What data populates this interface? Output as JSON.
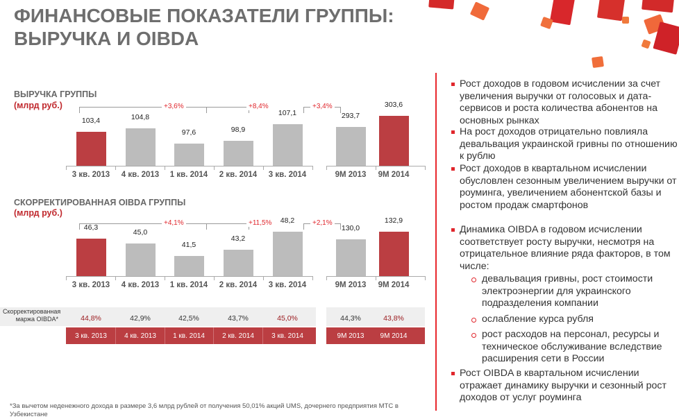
{
  "title": [
    "ФИНАНСОВЫЕ ПОКАЗАТЕЛИ ГРУППЫ:",
    "ВЫРУЧКА И OIBDA"
  ],
  "revenue": {
    "title": "ВЫРУЧКА ГРУППЫ",
    "unit": "(млрд руб.)",
    "growth_yoy": "+3,6%",
    "growth_qoq": "+8,4%",
    "growth_9m": "+3,4%"
  },
  "oibda": {
    "title": "СКОРРЕКТИРОВАННАЯ OIBDA ГРУППЫ",
    "unit": "(млрд руб.)",
    "growth_yoy": "+4,1%",
    "growth_qoq": "+11,5%",
    "growth_9m": "+2,1%"
  },
  "chart_data": [
    {
      "type": "bar",
      "title": "ВЫРУЧКА ГРУППЫ",
      "ylabel": "млрд руб.",
      "categories": [
        "3 кв. 2013",
        "4 кв. 2013",
        "1 кв. 2014",
        "2 кв. 2014",
        "3 кв. 2014"
      ],
      "values": [
        103.4,
        104.8,
        97.6,
        98.9,
        107.1
      ],
      "labels": [
        "103,4",
        "104,8",
        "97,6",
        "98,9",
        "107,1"
      ],
      "highlight": [
        0
      ],
      "ylim": [
        87,
        120
      ]
    },
    {
      "type": "bar",
      "title": "ВЫРУЧКА ГРУППЫ 9M",
      "categories": [
        "9M 2013",
        "9M 2014"
      ],
      "values": [
        293.7,
        303.6
      ],
      "labels": [
        "293,7",
        "303,6"
      ],
      "highlight": [
        1
      ],
      "ylim": [
        260,
        320
      ]
    },
    {
      "type": "bar",
      "title": "СКОРРЕКТИРОВАННАЯ OIBDA ГРУППЫ",
      "categories": [
        "3 кв. 2013",
        "4 кв. 2013",
        "1 кв. 2014",
        "2 кв. 2014",
        "3 кв. 2014"
      ],
      "values": [
        46.3,
        45.0,
        41.5,
        43.2,
        48.2
      ],
      "labels": [
        "46,3",
        "45,0",
        "41,5",
        "43,2",
        "48,2"
      ],
      "highlight": [
        0
      ],
      "ylim": [
        36,
        55
      ]
    },
    {
      "type": "bar",
      "title": "СКОРРЕКТИРОВАННАЯ OIBDA ГРУППЫ 9M",
      "categories": [
        "9M 2013",
        "9M 2014"
      ],
      "values": [
        130.0,
        132.9
      ],
      "labels": [
        "130,0",
        "132,9"
      ],
      "highlight": [
        1
      ],
      "ylim": [
        116,
        142
      ]
    }
  ],
  "margin": {
    "label": "Скорректированная маржа OIBDA*",
    "values": [
      "44,8%",
      "42,9%",
      "42,5%",
      "43,7%",
      "45,0%"
    ],
    "values_9m": [
      "44,3%",
      "43,8%"
    ],
    "periods": [
      "3 кв. 2013",
      "4 кв. 2013",
      "1 кв. 2014",
      "2 кв. 2014",
      "3 кв. 2014"
    ],
    "periods_9m": [
      "9M 2013",
      "9M 2014"
    ],
    "highlight_color": "#9b1c20"
  },
  "bullets": [
    "Рост доходов в годовом исчислении за счет увеличения выручки от голосовых и дата-сервисов и роста количества абонентов на основных рынках",
    "На рост доходов отрицательно повлияла девальвация украинской гривны по отношению к рублю",
    "Рост доходов в квартальном исчислении обусловлен сезонным увеличением выручки от роуминга, увеличением абонентской базы и ростом продаж смартфонов",
    "Динамика OIBDA в годовом исчислении соответствует росту выручки, несмотря на отрицательное влияние ряда факторов, в том числе:",
    "Рост OIBDA в квартальном исчислении отражает динамику выручки и сезонный рост доходов от услуг роуминга"
  ],
  "sub_bullets": [
    "девальвация гривны, рост стоимости электроэнергии для украинского подразделения компании",
    "ослабление курса рубля",
    "рост расходов на персонал, ресурсы и техническое обслуживание вследствие расширения сети в России"
  ],
  "footnote": "*За вычетом неденежного дохода в размере 3,6 млрд рублей от получения 50,01% акций UMS, дочернего предприятия МТС в Узбекистане",
  "colors": {
    "accent": "#bb3e42",
    "bar": "#bcbcbc",
    "text_red": "#e0262c"
  }
}
